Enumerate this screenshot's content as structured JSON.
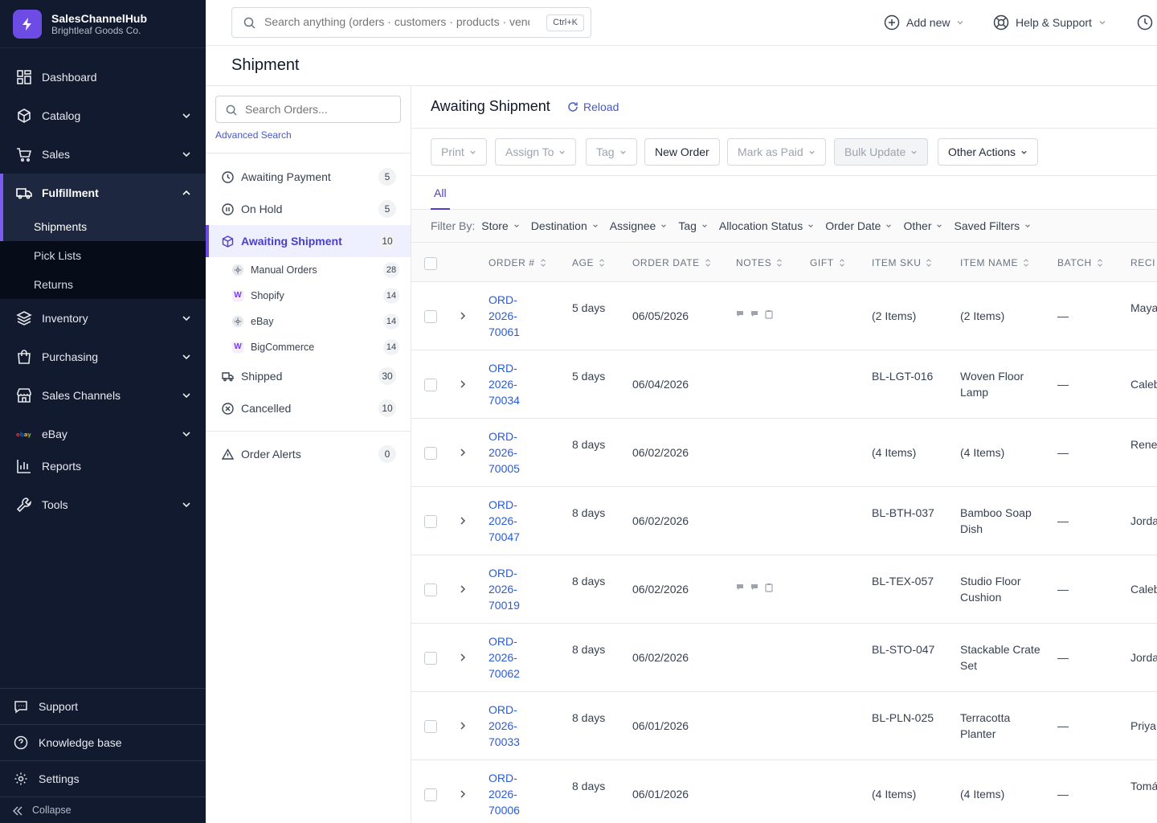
{
  "brand": {
    "name": "SalesChannelHub",
    "org": "Brightleaf Goods Co."
  },
  "nav": {
    "dashboard": "Dashboard",
    "catalog": "Catalog",
    "sales": "Sales",
    "fulfillment": "Fulfillment",
    "fulfillment_sub": [
      "Shipments",
      "Pick Lists",
      "Returns"
    ],
    "inventory": "Inventory",
    "purchasing": "Purchasing",
    "sales_channels": "Sales Channels",
    "ebay": "eBay",
    "reports": "Reports",
    "tools": "Tools"
  },
  "side_bottom": {
    "support": "Support",
    "knowledge": "Knowledge base",
    "settings": "Settings",
    "collapse": "Collapse"
  },
  "topbar": {
    "search_placeholder": "Search anything (orders · customers · products · vendors)",
    "shortcut": "Ctrl+K",
    "add_new": "Add new",
    "help": "Help & Support"
  },
  "page_title": "Shipment",
  "filter_panel": {
    "search_placeholder": "Search Orders...",
    "advanced": "Advanced Search",
    "statuses": [
      {
        "label": "Awaiting Payment",
        "count": "5"
      },
      {
        "label": "On Hold",
        "count": "5"
      },
      {
        "label": "Awaiting Shipment",
        "count": "10"
      },
      {
        "label": "Shipped",
        "count": "30"
      },
      {
        "label": "Cancelled",
        "count": "10"
      }
    ],
    "channels": [
      {
        "label": "Manual Orders",
        "count": "28"
      },
      {
        "label": "Shopify",
        "count": "14"
      },
      {
        "label": "eBay",
        "count": "14"
      },
      {
        "label": "BigCommerce",
        "count": "14"
      }
    ],
    "alerts": {
      "label": "Order Alerts",
      "count": "0"
    }
  },
  "main": {
    "title": "Awaiting Shipment",
    "reload": "Reload",
    "buttons": {
      "print": "Print",
      "assign": "Assign To",
      "tag": "Tag",
      "new_order": "New Order",
      "mark_paid": "Mark as Paid",
      "bulk_update": "Bulk Update",
      "other_actions": "Other Actions"
    },
    "tab_all": "All",
    "filter_label": "Filter By:",
    "filters": [
      "Store",
      "Destination",
      "Assignee",
      "Tag",
      "Allocation Status",
      "Order Date",
      "Other",
      "Saved Filters"
    ]
  },
  "table": {
    "columns": [
      "ORDER #",
      "AGE",
      "ORDER DATE",
      "NOTES",
      "GIFT",
      "ITEM SKU",
      "ITEM NAME",
      "BATCH",
      "RECI"
    ],
    "rows": [
      {
        "order": "ORD-2026-70061",
        "age": "5 days",
        "date": "06/05/2026",
        "sku": "(2 Items)",
        "name": "(2 Items)",
        "batch": "—",
        "recipient": "Maya Hend"
      },
      {
        "order": "ORD-2026-70034",
        "age": "5 days",
        "date": "06/04/2026",
        "sku": "BL-LGT-016",
        "name": "Woven Floor Lamp",
        "batch": "—",
        "recipient": "Caleb"
      },
      {
        "order": "ORD-2026-70005",
        "age": "8 days",
        "date": "06/02/2026",
        "sku": "(4 Items)",
        "name": "(4 Items)",
        "batch": "—",
        "recipient": "Rene Salaz"
      },
      {
        "order": "ORD-2026-70047",
        "age": "8 days",
        "date": "06/02/2026",
        "sku": "BL-BTH-037",
        "name": "Bamboo Soap Dish",
        "batch": "—",
        "recipient": "Jorda"
      },
      {
        "order": "ORD-2026-70019",
        "age": "8 days",
        "date": "06/02/2026",
        "sku": "BL-TEX-057",
        "name": "Studio Floor Cushion",
        "batch": "—",
        "recipient": "Caleb"
      },
      {
        "order": "ORD-2026-70062",
        "age": "8 days",
        "date": "06/02/2026",
        "sku": "BL-STO-047",
        "name": "Stackable Crate Set",
        "batch": "—",
        "recipient": "Jorda"
      },
      {
        "order": "ORD-2026-70033",
        "age": "8 days",
        "date": "06/01/2026",
        "sku": "BL-PLN-025",
        "name": "Terracotta Planter",
        "batch": "—",
        "recipient": "Priya"
      },
      {
        "order": "ORD-2026-70006",
        "age": "8 days",
        "date": "06/01/2026",
        "sku": "(4 Items)",
        "name": "(4 Items)",
        "batch": "—",
        "recipient": "Tomá Aguil"
      }
    ]
  },
  "colors": {
    "sidebar_bg": "#111a2e",
    "accent": "#6d4ce6",
    "link": "#2a5bd7"
  }
}
